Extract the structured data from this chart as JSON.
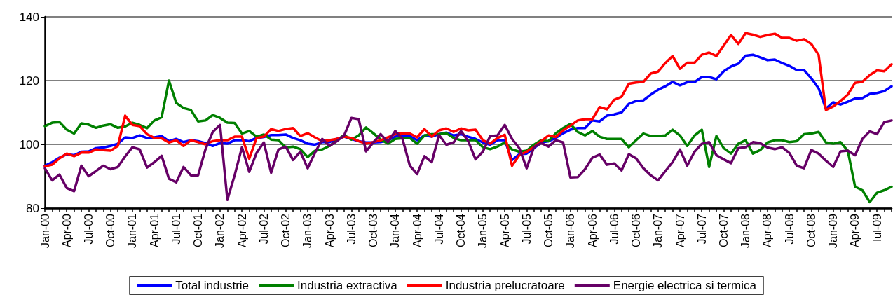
{
  "chart_data": {
    "type": "line",
    "categories": [
      "Jan-00",
      null,
      null,
      "Apr-00",
      null,
      null,
      "Jul-00",
      null,
      null,
      "Oct-00",
      null,
      null,
      "Jan-01",
      null,
      null,
      "Apr-01",
      null,
      null,
      "Jul-01",
      null,
      null,
      "Oct-01",
      null,
      null,
      "Jan-02",
      null,
      null,
      "Apr-02",
      null,
      null,
      "Jul-02",
      null,
      null,
      "Oct-02",
      null,
      null,
      "Jan-03",
      null,
      null,
      "Apr-03",
      null,
      null,
      "Jul-03",
      null,
      null,
      "Oct-03",
      null,
      null,
      "Jan-04",
      null,
      null,
      "Apr-04",
      null,
      null,
      "Jul-04",
      null,
      null,
      "Oct-04",
      null,
      null,
      "Jan-05",
      null,
      null,
      "Apr-05",
      null,
      null,
      "Jul-05",
      null,
      null,
      "Oct-05",
      null,
      null,
      "Jan-06",
      null,
      null,
      "Apr-06",
      null,
      null,
      "Jul-06",
      null,
      null,
      "Oct-06",
      null,
      null,
      "Jan-07",
      null,
      null,
      "Apr-07",
      null,
      null,
      "Jul-07",
      null,
      null,
      "Oct-07",
      null,
      null,
      "Jan-08",
      null,
      null,
      "Apr-08",
      null,
      null,
      "Jul-08",
      null,
      null,
      "Oct-08",
      null,
      null,
      "Jan-09",
      null,
      null,
      "Apr-09",
      null,
      null,
      "Iul-09",
      null,
      null
    ],
    "series": [
      {
        "name": "Total industrie",
        "color": "#0000ff",
        "values": [
          93.3,
          94.4,
          95.8,
          96.9,
          96.6,
          97.7,
          97.8,
          98.8,
          99,
          99.5,
          100.2,
          102.2,
          102,
          102.8,
          102,
          102.2,
          102.6,
          101,
          101.7,
          100.7,
          101.3,
          101,
          100.4,
          99.5,
          100.4,
          100.2,
          101.3,
          101.3,
          101,
          102,
          102.3,
          102.9,
          102.9,
          103.1,
          102,
          101.3,
          100.2,
          99.9,
          100.7,
          100.7,
          101.7,
          102.4,
          101.7,
          101,
          100.6,
          100.6,
          100.7,
          101.3,
          102.4,
          102.8,
          102.6,
          101.3,
          102.8,
          102.4,
          103.2,
          103.7,
          102.8,
          103.2,
          102.4,
          101.7,
          100.6,
          99.9,
          101.3,
          101.3,
          95.1,
          96.9,
          97.1,
          98.8,
          100.6,
          101,
          102,
          103.5,
          104.6,
          105.1,
          105.1,
          107.5,
          107.2,
          109,
          109.4,
          110,
          112.7,
          113.6,
          113.8,
          115.6,
          117.1,
          118.2,
          119.6,
          118.5,
          119.5,
          119.5,
          121.1,
          121.1,
          120.4,
          122.9,
          124.4,
          125.3,
          127.8,
          128.1,
          127.3,
          126.4,
          126.6,
          125.5,
          124.6,
          123.3,
          123.3,
          120.7,
          117.6,
          111.2,
          113.2,
          112.5,
          113.4,
          114.4,
          114.5,
          115.8,
          116.1,
          116.7,
          118.2
        ]
      },
      {
        "name": "Industria extractiva",
        "color": "#008000",
        "values": [
          105.7,
          106.8,
          107,
          104.6,
          103.4,
          106.6,
          106.2,
          105.2,
          105.9,
          106.3,
          105.2,
          105.6,
          106.8,
          106.1,
          105.1,
          107.5,
          108.5,
          120,
          113,
          111.4,
          110.8,
          107.2,
          107.5,
          109.2,
          108.3,
          106.8,
          106.7,
          103.4,
          104.2,
          102.4,
          103.1,
          101.5,
          101.3,
          99,
          99.3,
          98.5,
          96,
          98,
          98.4,
          99.5,
          101.3,
          102.9,
          101.5,
          102.8,
          105.3,
          103.5,
          101.5,
          100.2,
          101.7,
          101.9,
          102,
          100.2,
          102.8,
          103.2,
          103.2,
          103.5,
          102,
          101.3,
          101.3,
          101.3,
          99.1,
          98.5,
          99.3,
          100.6,
          98.4,
          97.7,
          98,
          99.9,
          101.3,
          101,
          103.5,
          105.1,
          106.4,
          103.9,
          102.8,
          104.2,
          102.4,
          101.7,
          101.7,
          101.7,
          99.1,
          101.3,
          103.4,
          102.6,
          102.6,
          102.8,
          104.6,
          102.8,
          99.5,
          102.8,
          104.6,
          92.9,
          102.6,
          98.8,
          97.1,
          100.2,
          101.3,
          97.1,
          98.2,
          100.6,
          101.3,
          101.3,
          100.7,
          101,
          103.2,
          103.4,
          103.9,
          100.6,
          100.2,
          100.7,
          98,
          86.7,
          85.6,
          81.9,
          84.8,
          85.6,
          86.7
        ]
      },
      {
        "name": "Industria prelucratoare",
        "color": "#ff0000",
        "values": [
          93.1,
          93.6,
          95.6,
          97.1,
          96.3,
          97.4,
          97.4,
          98.4,
          98.2,
          98,
          99.5,
          109,
          106.1,
          105.7,
          103.2,
          102,
          101.9,
          100.6,
          101.3,
          99.5,
          101.3,
          100.7,
          100,
          101,
          101.3,
          101.3,
          102.4,
          102.4,
          95.5,
          102,
          102.4,
          104.8,
          104.2,
          104.8,
          105.1,
          102.6,
          103.5,
          102.2,
          101,
          101.3,
          101.7,
          102.4,
          102,
          101,
          100.2,
          100.7,
          101.3,
          102.2,
          103.2,
          103.5,
          103.4,
          102.2,
          104.8,
          102.4,
          104.4,
          105,
          103.9,
          105,
          104.4,
          104.6,
          101.3,
          100.2,
          102,
          103,
          93.3,
          96.6,
          97.7,
          99.1,
          101,
          102.8,
          102.3,
          104.4,
          105.9,
          107.5,
          107.9,
          107.9,
          111.7,
          111,
          114,
          114.9,
          119,
          119.4,
          119.6,
          122.2,
          122.8,
          125.5,
          127.7,
          123.7,
          125.6,
          125.6,
          128.1,
          128.8,
          127.7,
          131,
          134.3,
          131.5,
          134.9,
          134.4,
          133.7,
          134.3,
          134.7,
          133.4,
          133.4,
          132.5,
          133,
          131.5,
          128.1,
          110.8,
          111.9,
          113.6,
          115.6,
          119.3,
          119.6,
          121.7,
          123.2,
          122.9,
          125.1
        ]
      },
      {
        "name": "Energie electrica si termica",
        "color": "#660066",
        "values": [
          92.5,
          88.7,
          90.5,
          86.3,
          85.3,
          93.3,
          90,
          91.6,
          93.3,
          92.2,
          92.9,
          96.2,
          99.1,
          98.4,
          92.7,
          94.4,
          96.4,
          89.2,
          88.1,
          92.9,
          90.3,
          90.3,
          98.4,
          103.9,
          106.1,
          82.6,
          90.3,
          99.1,
          91.4,
          97.3,
          100.6,
          91.1,
          98.4,
          99.3,
          95.1,
          97.7,
          92.5,
          97.3,
          101.7,
          99.5,
          101,
          102.8,
          108.3,
          107.9,
          97.8,
          100.6,
          103.2,
          100.7,
          104.2,
          101.7,
          93.3,
          90.7,
          96.3,
          94.4,
          102.9,
          99.9,
          100.6,
          104.2,
          101,
          95.3,
          97.7,
          102.6,
          102.8,
          106.1,
          101.7,
          98.8,
          92.5,
          99.1,
          100.4,
          99.3,
          101.3,
          100.6,
          89.6,
          89.7,
          92.2,
          95.8,
          96.8,
          93.6,
          94,
          91.8,
          96.9,
          95.6,
          92.5,
          90.3,
          88.7,
          91.6,
          94.4,
          98.4,
          93.3,
          97.7,
          100.2,
          100.7,
          96.6,
          95.3,
          94.1,
          98.8,
          99.1,
          100.7,
          100.4,
          99,
          98.5,
          99.1,
          97.3,
          93.3,
          92.5,
          98.2,
          97.1,
          94.9,
          92.9,
          97.8,
          98,
          96.6,
          101.7,
          104.1,
          103.2,
          107,
          107.5
        ]
      }
    ],
    "ylim": [
      80,
      140
    ],
    "yticks": [
      80,
      100,
      120,
      140
    ],
    "grid": "y",
    "legend": "bottom",
    "marker": "none",
    "line_style": "solid"
  }
}
